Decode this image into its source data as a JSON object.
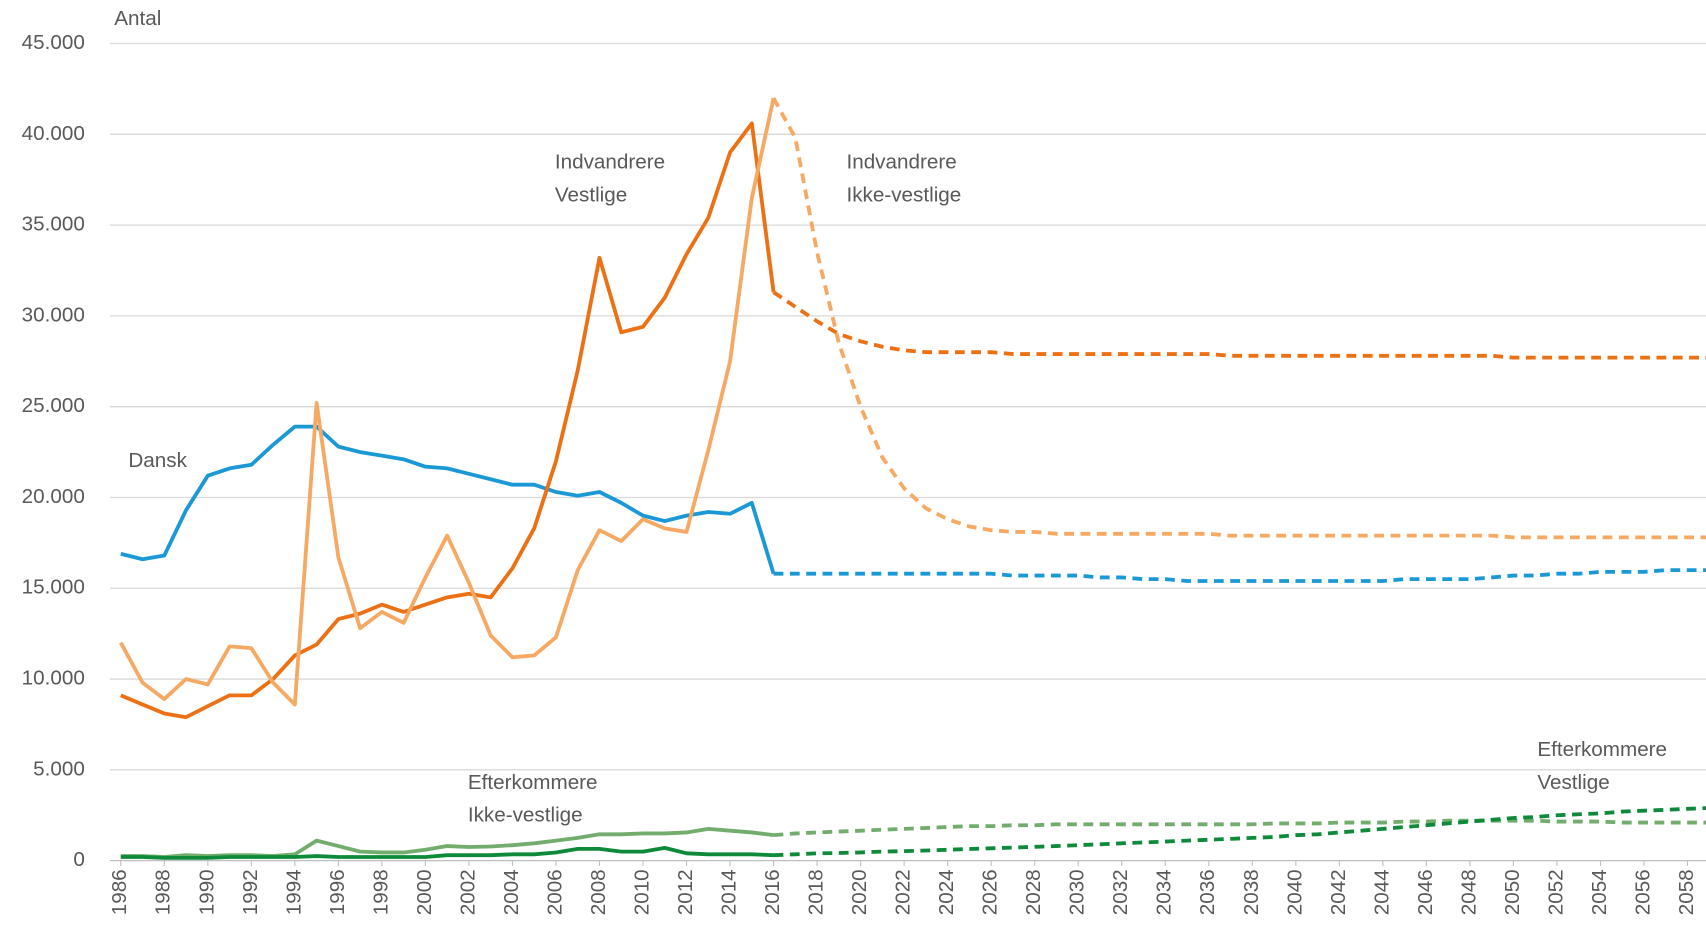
{
  "chart_data": {
    "type": "line",
    "y_label": "Antal",
    "x": [
      1986,
      1987,
      1988,
      1989,
      1990,
      1991,
      1992,
      1993,
      1994,
      1995,
      1996,
      1997,
      1998,
      1999,
      2000,
      2001,
      2002,
      2003,
      2004,
      2005,
      2006,
      2007,
      2008,
      2009,
      2010,
      2011,
      2012,
      2013,
      2014,
      2015,
      2016,
      2017,
      2018,
      2019,
      2020,
      2021,
      2022,
      2023,
      2024,
      2025,
      2026,
      2027,
      2028,
      2029,
      2030,
      2031,
      2032,
      2033,
      2034,
      2035,
      2036,
      2037,
      2038,
      2039,
      2040,
      2041,
      2042,
      2043,
      2044,
      2045,
      2046,
      2047,
      2048,
      2049,
      2050,
      2051,
      2052,
      2053,
      2054,
      2055,
      2056,
      2057,
      2058,
      2059
    ],
    "xlim": [
      1985.5,
      2059
    ],
    "xticks": [
      1986,
      1988,
      1990,
      1992,
      1994,
      1996,
      1998,
      2000,
      2002,
      2004,
      2006,
      2008,
      2010,
      2012,
      2014,
      2016,
      2018,
      2020,
      2022,
      2024,
      2026,
      2028,
      2030,
      2032,
      2034,
      2036,
      2038,
      2040,
      2042,
      2044,
      2046,
      2048,
      2050,
      2052,
      2054,
      2056,
      2058
    ],
    "ylim": [
      0,
      45000
    ],
    "yticks": [
      0,
      {
        "value": 5000,
        "label": "5.000"
      },
      {
        "value": 10000,
        "label": "10.000"
      },
      {
        "value": 15000,
        "label": "15.000"
      },
      {
        "value": 20000,
        "label": "20.000"
      },
      {
        "value": 25000,
        "label": "25.000"
      },
      {
        "value": 30000,
        "label": "30.000"
      },
      {
        "value": 35000,
        "label": "35.000"
      },
      {
        "value": 40000,
        "label": "40.000"
      },
      {
        "value": 45000,
        "label": "45.000"
      }
    ],
    "grid": true,
    "dash_from": 2016,
    "series": [
      {
        "name": [
          "Dansk"
        ],
        "color": "#1b98d6",
        "values": [
          16900,
          16600,
          16800,
          19300,
          21200,
          21600,
          21800,
          22900,
          23900,
          23900,
          22800,
          22500,
          22300,
          22100,
          21700,
          21600,
          21300,
          21000,
          20700,
          20700,
          20300,
          20100,
          20300,
          19700,
          19000,
          18700,
          19000,
          19200,
          19100,
          19700,
          15800,
          15800,
          15800,
          15800,
          15800,
          15800,
          15800,
          15800,
          15800,
          15800,
          15800,
          15700,
          15700,
          15700,
          15700,
          15600,
          15600,
          15500,
          15500,
          15400,
          15400,
          15400,
          15400,
          15400,
          15400,
          15400,
          15400,
          15400,
          15400,
          15500,
          15500,
          15500,
          15500,
          15600,
          15700,
          15700,
          15800,
          15800,
          15900,
          15900,
          15900,
          16000,
          16000,
          16000
        ]
      },
      {
        "name": [
          "Indvandrere",
          "Vestlige"
        ],
        "color": "#ec7014",
        "values": [
          9100,
          8600,
          8100,
          7900,
          8500,
          9100,
          9100,
          10000,
          11300,
          11900,
          13300,
          13600,
          14100,
          13700,
          14100,
          14500,
          14700,
          14500,
          16100,
          18300,
          22000,
          27000,
          33200,
          29100,
          29400,
          31000,
          33400,
          35400,
          39000,
          40600,
          31300,
          30500,
          29700,
          29000,
          28600,
          28300,
          28100,
          28000,
          28000,
          28000,
          28000,
          27900,
          27900,
          27900,
          27900,
          27900,
          27900,
          27900,
          27900,
          27900,
          27900,
          27800,
          27800,
          27800,
          27800,
          27800,
          27800,
          27800,
          27800,
          27800,
          27800,
          27800,
          27800,
          27800,
          27700,
          27700,
          27700,
          27700,
          27700,
          27700,
          27700,
          27700,
          27700,
          27700
        ]
      },
      {
        "name": [
          "Indvandrere",
          "Ikke-vestlige"
        ],
        "color": "#f5a963",
        "values": [
          12000,
          9800,
          8900,
          10000,
          9700,
          11800,
          11700,
          9800,
          8600,
          25200,
          16700,
          12800,
          13700,
          13100,
          15600,
          17900,
          15300,
          12400,
          11200,
          11300,
          12300,
          16000,
          18200,
          17600,
          18800,
          18300,
          18100,
          22600,
          27500,
          36500,
          42000,
          39800,
          33500,
          28500,
          25000,
          22200,
          20500,
          19400,
          18800,
          18400,
          18200,
          18100,
          18100,
          18000,
          18000,
          18000,
          18000,
          18000,
          18000,
          18000,
          18000,
          17900,
          17900,
          17900,
          17900,
          17900,
          17900,
          17900,
          17900,
          17900,
          17900,
          17900,
          17900,
          17900,
          17800,
          17800,
          17800,
          17800,
          17800,
          17800,
          17800,
          17800,
          17800,
          17800
        ]
      },
      {
        "name": [
          "Efterkommere",
          "Ikke-vestlige"
        ],
        "color": "#72ad6e",
        "values": [
          250,
          250,
          200,
          300,
          250,
          300,
          300,
          250,
          350,
          1100,
          800,
          500,
          450,
          450,
          600,
          800,
          750,
          780,
          850,
          950,
          1100,
          1250,
          1450,
          1450,
          1500,
          1500,
          1550,
          1750,
          1650,
          1550,
          1400,
          1500,
          1550,
          1600,
          1650,
          1700,
          1750,
          1800,
          1850,
          1900,
          1900,
          1950,
          1950,
          2000,
          2000,
          2000,
          2000,
          2000,
          2000,
          2000,
          2000,
          2000,
          2000,
          2050,
          2050,
          2050,
          2100,
          2100,
          2100,
          2150,
          2150,
          2200,
          2200,
          2200,
          2200,
          2200,
          2150,
          2150,
          2150,
          2100,
          2100,
          2100,
          2100,
          2100
        ]
      },
      {
        "name": [
          "Efterkommere",
          "Vestlige"
        ],
        "color": "#0e8a3a",
        "values": [
          200,
          200,
          150,
          150,
          150,
          200,
          200,
          200,
          200,
          250,
          200,
          200,
          200,
          200,
          200,
          300,
          300,
          300,
          350,
          350,
          450,
          650,
          650,
          500,
          500,
          700,
          400,
          350,
          350,
          350,
          300,
          350,
          400,
          420,
          450,
          500,
          520,
          560,
          600,
          640,
          680,
          720,
          760,
          800,
          850,
          900,
          950,
          1000,
          1050,
          1100,
          1150,
          1200,
          1250,
          1300,
          1400,
          1450,
          1550,
          1650,
          1750,
          1850,
          1950,
          2050,
          2150,
          2250,
          2350,
          2400,
          2500,
          2550,
          2600,
          2700,
          2750,
          2800,
          2850,
          2900
        ]
      }
    ]
  }
}
